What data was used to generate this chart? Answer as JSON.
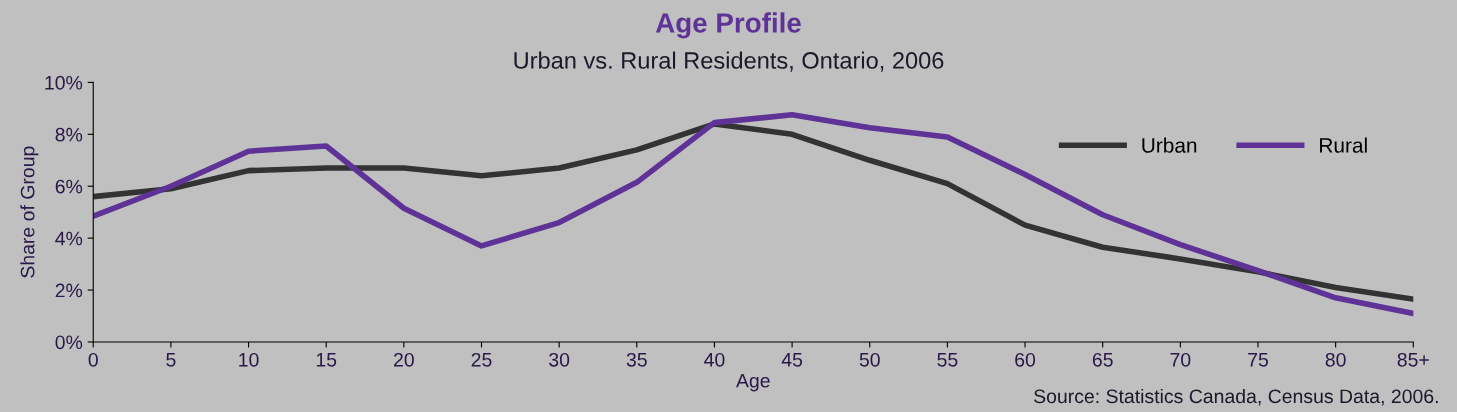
{
  "chart_data": {
    "type": "line",
    "title": "Age Profile",
    "subtitle": "Urban vs. Rural Residents, Ontario, 2006",
    "xlabel": "Age",
    "ylabel": "Share of Group",
    "categories": [
      "0",
      "5",
      "10",
      "15",
      "20",
      "25",
      "30",
      "35",
      "40",
      "45",
      "50",
      "55",
      "60",
      "65",
      "70",
      "75",
      "80",
      "85+"
    ],
    "series": [
      {
        "name": "Urban",
        "color": "#333333",
        "values": [
          5.6,
          5.9,
          6.6,
          6.7,
          6.7,
          6.4,
          6.7,
          7.4,
          8.4,
          8.0,
          7.0,
          6.1,
          4.5,
          3.65,
          3.2,
          2.7,
          2.1,
          1.65
        ]
      },
      {
        "name": "Rural",
        "color": "#5e3296",
        "values": [
          4.85,
          6.0,
          7.35,
          7.55,
          5.15,
          3.7,
          4.6,
          6.15,
          8.45,
          8.75,
          8.25,
          7.9,
          6.45,
          4.9,
          3.75,
          2.75,
          1.7,
          1.1
        ]
      }
    ],
    "ylim": [
      0,
      10
    ],
    "yticks": [
      {
        "value": 0,
        "label": "0%"
      },
      {
        "value": 2,
        "label": "2%"
      },
      {
        "value": 4,
        "label": "4%"
      },
      {
        "value": 6,
        "label": "6%"
      },
      {
        "value": 8,
        "label": "8%"
      },
      {
        "value": 10,
        "label": "10%"
      }
    ],
    "grid": false,
    "legend": "top right",
    "marker": "none",
    "line_style": "solid",
    "annotations": [
      "Source: Statistics Canada, Census Data, 2006."
    ]
  }
}
